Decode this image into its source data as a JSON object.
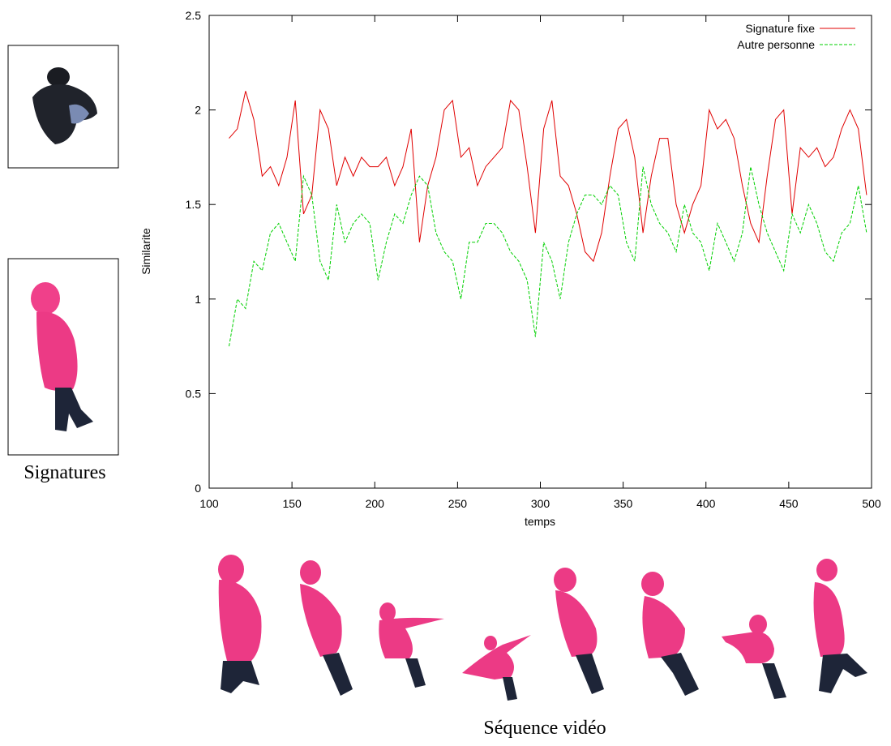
{
  "chart_data": {
    "type": "line",
    "xlabel": "temps",
    "ylabel": "Similarite",
    "x": [
      112,
      117,
      122,
      127,
      132,
      137,
      142,
      147,
      152,
      157,
      162,
      167,
      172,
      177,
      182,
      187,
      192,
      197,
      202,
      207,
      212,
      217,
      222,
      227,
      232,
      237,
      242,
      247,
      252,
      257,
      262,
      267,
      272,
      277,
      282,
      287,
      292,
      297,
      302,
      307,
      312,
      317,
      322,
      327,
      332,
      337,
      342,
      347,
      352,
      357,
      362,
      367,
      372,
      377,
      382,
      387,
      392,
      397,
      402,
      407,
      412,
      417,
      422,
      427,
      432,
      437,
      442,
      447,
      452,
      457,
      462,
      467,
      472,
      477,
      482,
      487,
      492,
      497
    ],
    "series": [
      {
        "name": "Signature fixe",
        "color": "#e00000",
        "dash": false,
        "values": [
          1.85,
          1.9,
          2.1,
          1.95,
          1.65,
          1.7,
          1.6,
          1.75,
          2.05,
          1.45,
          1.55,
          2.0,
          1.9,
          1.6,
          1.75,
          1.65,
          1.75,
          1.7,
          1.7,
          1.75,
          1.6,
          1.7,
          1.9,
          1.3,
          1.6,
          1.75,
          2.0,
          2.05,
          1.75,
          1.8,
          1.6,
          1.7,
          1.75,
          1.8,
          2.05,
          2.0,
          1.7,
          1.35,
          1.9,
          2.05,
          1.65,
          1.6,
          1.45,
          1.25,
          1.2,
          1.35,
          1.65,
          1.9,
          1.95,
          1.75,
          1.35,
          1.65,
          1.85,
          1.85,
          1.5,
          1.35,
          1.5,
          1.6,
          2.0,
          1.9,
          1.95,
          1.85,
          1.6,
          1.4,
          1.3,
          1.65,
          1.95,
          2.0,
          1.45,
          1.8,
          1.75,
          1.8,
          1.7,
          1.75,
          1.9,
          2.0,
          1.9,
          1.55
        ]
      },
      {
        "name": "Autre personne",
        "color": "#00d000",
        "dash": true,
        "values": [
          0.75,
          1.0,
          0.95,
          1.2,
          1.15,
          1.35,
          1.4,
          1.3,
          1.2,
          1.65,
          1.55,
          1.2,
          1.1,
          1.5,
          1.3,
          1.4,
          1.45,
          1.4,
          1.1,
          1.3,
          1.45,
          1.4,
          1.55,
          1.65,
          1.6,
          1.35,
          1.25,
          1.2,
          1.0,
          1.3,
          1.3,
          1.4,
          1.4,
          1.35,
          1.25,
          1.2,
          1.1,
          0.8,
          1.3,
          1.2,
          1.0,
          1.3,
          1.45,
          1.55,
          1.55,
          1.5,
          1.6,
          1.55,
          1.3,
          1.2,
          1.7,
          1.5,
          1.4,
          1.35,
          1.25,
          1.5,
          1.35,
          1.3,
          1.15,
          1.4,
          1.3,
          1.2,
          1.35,
          1.7,
          1.5,
          1.35,
          1.25,
          1.15,
          1.45,
          1.35,
          1.5,
          1.4,
          1.25,
          1.2,
          1.35,
          1.4,
          1.6,
          1.35
        ]
      }
    ],
    "xlim": [
      100,
      500
    ],
    "xticks": [
      100,
      150,
      200,
      250,
      300,
      350,
      400,
      450,
      500
    ],
    "ylim": [
      0,
      2.5
    ],
    "yticks": [
      0,
      0.5,
      1,
      1.5,
      2,
      2.5
    ],
    "legend": "upper right"
  },
  "figure": {
    "signatures_caption": "Signatures",
    "sequence_caption": "Séquence vidéo"
  }
}
